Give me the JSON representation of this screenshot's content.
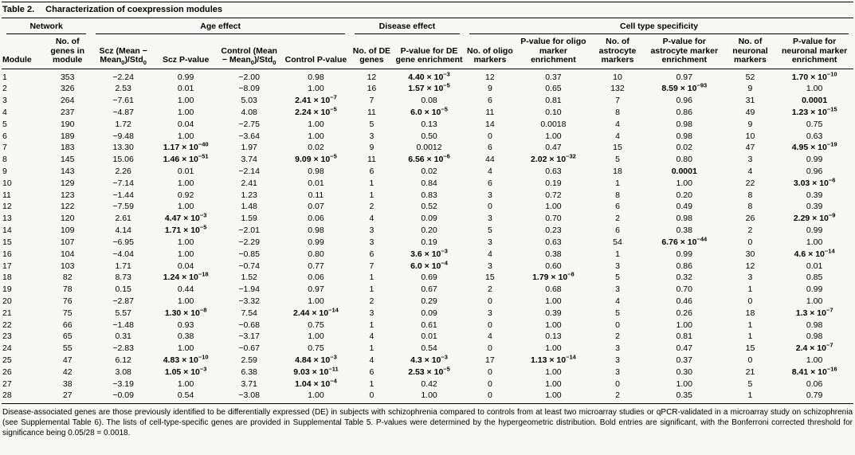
{
  "title": {
    "label": "Table 2.",
    "text": "Characterization of coexpression modules"
  },
  "table": {
    "groups": [
      {
        "label": "Network",
        "span": 2
      },
      {
        "label": "Age effect",
        "span": 4
      },
      {
        "label": "Disease effect",
        "span": 2
      },
      {
        "label": "Cell type specificity",
        "span": 6
      }
    ],
    "columns": [
      "Module",
      "No. of genes in module",
      "Scz (Mean − Mean_{0})/Std_{0}",
      "Scz P-value",
      "Control (Mean − Mean_{0})/Std_{0}",
      "Control P-value",
      "No. of DE genes",
      "P-value for DE gene enrichment",
      "No. of oligo markers",
      "P-value for oligo marker enrichment",
      "No. of astrocyte markers",
      "P-value for astrocyte marker enrichment",
      "No. of neuronal markers",
      "P-value for neuronal marker enrichment"
    ],
    "rows": [
      {
        "cells": [
          "1",
          "353",
          "−2.24",
          "0.99",
          "−2.00",
          "0.98",
          "12",
          "4.40 × 10^{−3}",
          "12",
          "0.37",
          "10",
          "0.97",
          "52",
          "1.70 × 10^{−10}"
        ],
        "bold": [
          7,
          13
        ]
      },
      {
        "cells": [
          "2",
          "326",
          "2.53",
          "0.01",
          "−8.09",
          "1.00",
          "16",
          "1.57 × 10^{−5}",
          "9",
          "0.65",
          "132",
          "8.59 × 10^{−93}",
          "9",
          "1.00"
        ],
        "bold": [
          7,
          11
        ]
      },
      {
        "cells": [
          "3",
          "264",
          "−7.61",
          "1.00",
          "5.03",
          "2.41 × 10^{−7}",
          "7",
          "0.08",
          "6",
          "0.81",
          "7",
          "0.96",
          "31",
          "0.0001"
        ],
        "bold": [
          5,
          13
        ]
      },
      {
        "cells": [
          "4",
          "237",
          "−4.87",
          "1.00",
          "4.08",
          "2.24 × 10^{−5}",
          "11",
          "6.0 × 10^{−5}",
          "11",
          "0.10",
          "8",
          "0.86",
          "49",
          "1.23 × 10^{−15}"
        ],
        "bold": [
          5,
          7,
          13
        ]
      },
      {
        "cells": [
          "5",
          "190",
          "1.72",
          "0.04",
          "−2.75",
          "1.00",
          "5",
          "0.13",
          "14",
          "0.0018",
          "4",
          "0.98",
          "9",
          "0.75"
        ],
        "bold": []
      },
      {
        "cells": [
          "6",
          "189",
          "−9.48",
          "1.00",
          "−3.64",
          "1.00",
          "3",
          "0.50",
          "0",
          "1.00",
          "4",
          "0.98",
          "10",
          "0.63"
        ],
        "bold": []
      },
      {
        "cells": [
          "7",
          "183",
          "13.30",
          "1.17 × 10^{−40}",
          "1.97",
          "0.02",
          "9",
          "0.0012",
          "6",
          "0.47",
          "15",
          "0.02",
          "47",
          "4.95 × 10^{−19}"
        ],
        "bold": [
          3,
          13
        ]
      },
      {
        "cells": [
          "8",
          "145",
          "15.06",
          "1.46 × 10^{−51}",
          "3.74",
          "9.09 × 10^{−5}",
          "11",
          "6.56 × 10^{−6}",
          "44",
          "2.02 × 10^{−32}",
          "5",
          "0.80",
          "3",
          "0.99"
        ],
        "bold": [
          3,
          5,
          7,
          9
        ]
      },
      {
        "cells": [
          "9",
          "143",
          "2.26",
          "0.01",
          "−2.14",
          "0.98",
          "6",
          "0.02",
          "4",
          "0.63",
          "18",
          "0.0001",
          "4",
          "0.96"
        ],
        "bold": [
          11
        ]
      },
      {
        "cells": [
          "10",
          "129",
          "−7.14",
          "1.00",
          "2.41",
          "0.01",
          "1",
          "0.84",
          "6",
          "0.19",
          "1",
          "1.00",
          "22",
          "3.03 × 10^{−6}"
        ],
        "bold": [
          13
        ]
      },
      {
        "cells": [
          "11",
          "123",
          "−1.44",
          "0.92",
          "1.23",
          "0.11",
          "1",
          "0.83",
          "3",
          "0.72",
          "8",
          "0.20",
          "8",
          "0.39"
        ],
        "bold": []
      },
      {
        "cells": [
          "12",
          "122",
          "−7.59",
          "1.00",
          "1.48",
          "0.07",
          "2",
          "0.52",
          "0",
          "1.00",
          "6",
          "0.49",
          "8",
          "0.39"
        ],
        "bold": []
      },
      {
        "cells": [
          "13",
          "120",
          "2.61",
          "4.47 × 10^{−3}",
          "1.59",
          "0.06",
          "4",
          "0.09",
          "3",
          "0.70",
          "2",
          "0.98",
          "26",
          "2.29 × 10^{−9}"
        ],
        "bold": [
          3,
          13
        ]
      },
      {
        "cells": [
          "14",
          "109",
          "4.14",
          "1.71 × 10^{−5}",
          "−2.01",
          "0.98",
          "3",
          "0.20",
          "5",
          "0.23",
          "6",
          "0.38",
          "2",
          "0.99"
        ],
        "bold": [
          3
        ]
      },
      {
        "cells": [
          "15",
          "107",
          "−6.95",
          "1.00",
          "−2.29",
          "0.99",
          "3",
          "0.19",
          "3",
          "0.63",
          "54",
          "6.76 × 10^{−44}",
          "0",
          "1.00"
        ],
        "bold": [
          11
        ]
      },
      {
        "cells": [
          "16",
          "104",
          "−4.04",
          "1.00",
          "−0.85",
          "0.80",
          "6",
          "3.6 × 10^{−3}",
          "4",
          "0.38",
          "1",
          "0.99",
          "30",
          "4.6 × 10^{−14}"
        ],
        "bold": [
          7,
          13
        ]
      },
      {
        "cells": [
          "17",
          "103",
          "1.71",
          "0.04",
          "−0.74",
          "0.77",
          "7",
          "6.0 × 10^{−4}",
          "3",
          "0.60",
          "3",
          "0.86",
          "12",
          "0.01"
        ],
        "bold": [
          7
        ]
      },
      {
        "cells": [
          "18",
          "82",
          "8.73",
          "1.24 × 10^{−18}",
          "1.52",
          "0.06",
          "1",
          "0.69",
          "15",
          "1.79 × 10^{−8}",
          "5",
          "0.32",
          "3",
          "0.85"
        ],
        "bold": [
          3,
          9
        ]
      },
      {
        "cells": [
          "19",
          "78",
          "0.15",
          "0.44",
          "−1.94",
          "0.97",
          "1",
          "0.67",
          "2",
          "0.68",
          "3",
          "0.70",
          "1",
          "0.99"
        ],
        "bold": []
      },
      {
        "cells": [
          "20",
          "76",
          "−2.87",
          "1.00",
          "−3.32",
          "1.00",
          "2",
          "0.29",
          "0",
          "1.00",
          "4",
          "0.46",
          "0",
          "1.00"
        ],
        "bold": []
      },
      {
        "cells": [
          "21",
          "75",
          "5.57",
          "1.30 × 10^{−8}",
          "7.54",
          "2.44 × 10^{−14}",
          "3",
          "0.09",
          "3",
          "0.39",
          "5",
          "0.26",
          "18",
          "1.3 × 10^{−7}"
        ],
        "bold": [
          3,
          5,
          13
        ]
      },
      {
        "cells": [
          "22",
          "66",
          "−1.48",
          "0.93",
          "−0.68",
          "0.75",
          "1",
          "0.61",
          "0",
          "1.00",
          "0",
          "1.00",
          "1",
          "0.98"
        ],
        "bold": []
      },
      {
        "cells": [
          "23",
          "65",
          "0.31",
          "0.38",
          "−3.17",
          "1.00",
          "4",
          "0.01",
          "4",
          "0.13",
          "2",
          "0.81",
          "1",
          "0.98"
        ],
        "bold": []
      },
      {
        "cells": [
          "24",
          "55",
          "−2.83",
          "1.00",
          "−0.67",
          "0.75",
          "1",
          "0.54",
          "0",
          "1.00",
          "3",
          "0.47",
          "15",
          "2.4 × 10^{−7}"
        ],
        "bold": [
          13
        ]
      },
      {
        "cells": [
          "25",
          "47",
          "6.12",
          "4.83 × 10^{−10}",
          "2.59",
          "4.84 × 10^{−3}",
          "4",
          "4.3 × 10^{−3}",
          "17",
          "1.13 × 10^{−14}",
          "3",
          "0.37",
          "0",
          "1.00"
        ],
        "bold": [
          3,
          5,
          7,
          9
        ]
      },
      {
        "cells": [
          "26",
          "42",
          "3.08",
          "1.05 × 10^{−3}",
          "6.38",
          "9.03 × 10^{−11}",
          "6",
          "2.53 × 10^{−5}",
          "0",
          "1.00",
          "3",
          "0.30",
          "21",
          "8.41 × 10^{−16}"
        ],
        "bold": [
          3,
          5,
          7,
          13
        ]
      },
      {
        "cells": [
          "27",
          "38",
          "−3.19",
          "1.00",
          "3.71",
          "1.04 × 10^{−4}",
          "1",
          "0.42",
          "0",
          "1.00",
          "0",
          "1.00",
          "5",
          "0.06"
        ],
        "bold": [
          5
        ]
      },
      {
        "cells": [
          "28",
          "27",
          "−0.09",
          "0.54",
          "−3.08",
          "1.00",
          "0",
          "1.00",
          "0",
          "1.00",
          "2",
          "0.35",
          "1",
          "0.79"
        ],
        "bold": []
      }
    ]
  },
  "footnote": "Disease-associated genes are those previously identified to be differentially expressed (DE) in subjects with schizophrenia compared to controls from at least two microarray studies or qPCR-validated in a microarray study on schizophrenia (see Supplemental Table 6). The lists of cell-type-specific genes are provided in Supplemental Table 5. P-values were determined by the hypergeometric distribution. Bold entries are significant, with the Bonferroni corrected threshold for significance being 0.05/28 = 0.0018."
}
